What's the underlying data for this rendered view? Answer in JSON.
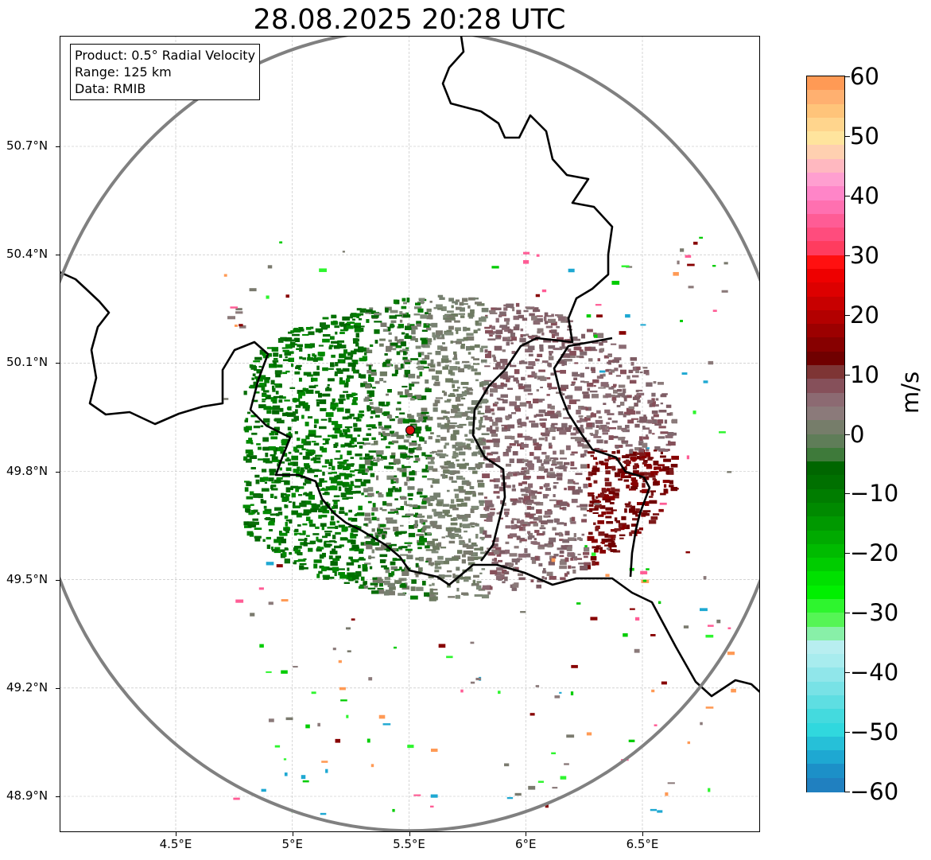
{
  "map": {
    "title": "28.08.2025 20:28 UTC",
    "info": {
      "product": "Product: 0.5° Radial Velocity",
      "range": "Range: 125 km",
      "data": "Data: RMIB"
    },
    "lat_ticks": [
      {
        "value": 50.7,
        "label": "50.7°N"
      },
      {
        "value": 50.4,
        "label": "50.4°N"
      },
      {
        "value": 50.1,
        "label": "50.1°N"
      },
      {
        "value": 49.8,
        "label": "49.8°N"
      },
      {
        "value": 49.5,
        "label": "49.5°N"
      },
      {
        "value": 49.2,
        "label": "49.2°N"
      },
      {
        "value": 48.9,
        "label": "48.9°N"
      }
    ],
    "lon_ticks": [
      {
        "value": 4.5,
        "label": "4.5°E"
      },
      {
        "value": 5.0,
        "label": "5°E"
      },
      {
        "value": 5.5,
        "label": "5.5°E"
      },
      {
        "value": 6.0,
        "label": "6°E"
      },
      {
        "value": 6.5,
        "label": "6.5°E"
      }
    ],
    "extent": {
      "lon_min": 4.0,
      "lon_max": 7.0,
      "lat_min": 48.8,
      "lat_max": 50.99
    },
    "radar_site": {
      "lon": 5.505,
      "lat": 49.914,
      "color": "#dd1111"
    },
    "range_ring_color": "#808080",
    "colorbar": {
      "label": "m/s",
      "min": -60,
      "max": 60,
      "ticks": [
        "60",
        "50",
        "40",
        "30",
        "20",
        "10",
        "0",
        "−10",
        "−20",
        "−30",
        "−40",
        "−50",
        "−60"
      ],
      "colors_top_to_bottom": [
        "#ff9a55",
        "#ffb070",
        "#ffc47a",
        "#ffd58d",
        "#ffe49d",
        "#ffd0b0",
        "#ffb8c0",
        "#ff9fd0",
        "#ff85c8",
        "#ff70b0",
        "#ff5c95",
        "#ff4c7d",
        "#ff3c5f",
        "#ff1010",
        "#ee0000",
        "#dd0000",
        "#c80000",
        "#b30000",
        "#9c0000",
        "#870000",
        "#700000",
        "#7e3535",
        "#86505a",
        "#8c6a72",
        "#8b7a7a",
        "#767d6a",
        "#5f7d58",
        "#3e7a3a",
        "#006600",
        "#007000",
        "#007d00",
        "#008a00",
        "#009900",
        "#00aa00",
        "#00bb00",
        "#00cc00",
        "#00e000",
        "#00f000",
        "#2ef52e",
        "#55f555",
        "#88f0a8",
        "#b8eef0",
        "#a8ecee",
        "#90e6ea",
        "#78e2e6",
        "#5edee2",
        "#44dade",
        "#30d8de",
        "#26c0d8",
        "#1ea8d2",
        "#1c90c8",
        "#2080c0"
      ]
    }
  }
}
